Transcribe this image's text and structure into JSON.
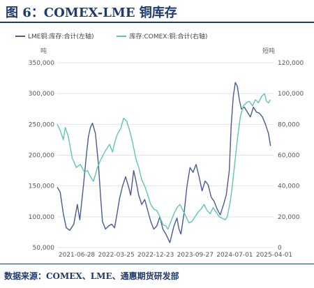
{
  "title": "图 6：COMEX-LME 铜库存",
  "source": "数据来源：COMEX、LME、通惠期货研发部",
  "colors": {
    "lme": "#4a5a96",
    "comex": "#5ec8b0",
    "title": "#1f3a6e",
    "grid": "#e3e3e3"
  },
  "chart_data": {
    "type": "line",
    "left_unit": "吨",
    "right_unit": "短吨",
    "y_left_ticks": [
      "350,000",
      "300,000",
      "250,000",
      "200,000",
      "150,000",
      "100,000",
      "50,000"
    ],
    "y_right_ticks": [
      "120,000",
      "100,000",
      "80,000",
      "60,000",
      "40,000",
      "20,000",
      "0"
    ],
    "ylim_left": [
      50000,
      350000
    ],
    "ylim_right": [
      0,
      120000
    ],
    "x_ticks": [
      "2021-06-28",
      "2022-03-25",
      "2022-12-23",
      "2023-09-27",
      "2024-07-01",
      "2025-04-01"
    ],
    "grid": "horizontal",
    "legend_position": "top",
    "series": [
      {
        "name": "LME铜:库存:合计(左轴)",
        "axis": "left",
        "values": [
          [
            2021.0,
            148000
          ],
          [
            2021.06,
            140000
          ],
          [
            2021.12,
            105000
          ],
          [
            2021.18,
            82000
          ],
          [
            2021.25,
            78000
          ],
          [
            2021.33,
            88000
          ],
          [
            2021.4,
            120000
          ],
          [
            2021.45,
            95000
          ],
          [
            2021.52,
            150000
          ],
          [
            2021.58,
            200000
          ],
          [
            2021.62,
            230000
          ],
          [
            2021.66,
            245000
          ],
          [
            2021.7,
            252000
          ],
          [
            2021.76,
            235000
          ],
          [
            2021.82,
            185000
          ],
          [
            2021.86,
            135000
          ],
          [
            2021.9,
            92000
          ],
          [
            2021.96,
            80000
          ],
          [
            2022.02,
            85000
          ],
          [
            2022.08,
            88000
          ],
          [
            2022.14,
            82000
          ],
          [
            2022.2,
            110000
          ],
          [
            2022.24,
            130000
          ],
          [
            2022.3,
            150000
          ],
          [
            2022.36,
            165000
          ],
          [
            2022.42,
            148000
          ],
          [
            2022.46,
            135000
          ],
          [
            2022.52,
            175000
          ],
          [
            2022.56,
            160000
          ],
          [
            2022.62,
            135000
          ],
          [
            2022.68,
            120000
          ],
          [
            2022.74,
            128000
          ],
          [
            2022.8,
            110000
          ],
          [
            2022.86,
            92000
          ],
          [
            2022.92,
            80000
          ],
          [
            2022.98,
            85000
          ],
          [
            2023.04,
            100000
          ],
          [
            2023.1,
            80000
          ],
          [
            2023.16,
            72000
          ],
          [
            2023.2,
            65000
          ],
          [
            2023.24,
            58000
          ],
          [
            2023.28,
            72000
          ],
          [
            2023.32,
            85000
          ],
          [
            2023.38,
            98000
          ],
          [
            2023.42,
            80000
          ],
          [
            2023.46,
            72000
          ],
          [
            2023.52,
            105000
          ],
          [
            2023.58,
            150000
          ],
          [
            2023.64,
            180000
          ],
          [
            2023.7,
            172000
          ],
          [
            2023.76,
            185000
          ],
          [
            2023.82,
            165000
          ],
          [
            2023.88,
            142000
          ],
          [
            2023.94,
            158000
          ],
          [
            2024.0,
            152000
          ],
          [
            2024.06,
            132000
          ],
          [
            2024.12,
            125000
          ],
          [
            2024.18,
            112000
          ],
          [
            2024.24,
            103000
          ],
          [
            2024.3,
            118000
          ],
          [
            2024.36,
            135000
          ],
          [
            2024.42,
            175000
          ],
          [
            2024.46,
            250000
          ],
          [
            2024.5,
            295000
          ],
          [
            2024.54,
            318000
          ],
          [
            2024.58,
            312000
          ],
          [
            2024.62,
            290000
          ],
          [
            2024.66,
            275000
          ],
          [
            2024.72,
            278000
          ],
          [
            2024.78,
            270000
          ],
          [
            2024.84,
            262000
          ],
          [
            2024.9,
            278000
          ],
          [
            2024.96,
            270000
          ],
          [
            2025.02,
            268000
          ],
          [
            2025.08,
            262000
          ],
          [
            2025.14,
            250000
          ],
          [
            2025.2,
            235000
          ],
          [
            2025.24,
            215000
          ]
        ]
      },
      {
        "name": "库存:COMEX:铜:合计(右轴)",
        "axis": "right",
        "values": [
          [
            2021.0,
            80000
          ],
          [
            2021.06,
            76000
          ],
          [
            2021.12,
            70000
          ],
          [
            2021.16,
            78000
          ],
          [
            2021.22,
            72000
          ],
          [
            2021.3,
            58000
          ],
          [
            2021.38,
            52000
          ],
          [
            2021.46,
            54000
          ],
          [
            2021.54,
            49000
          ],
          [
            2021.6,
            50000
          ],
          [
            2021.66,
            46000
          ],
          [
            2021.72,
            43000
          ],
          [
            2021.8,
            52000
          ],
          [
            2021.88,
            58000
          ],
          [
            2021.96,
            63000
          ],
          [
            2022.04,
            67000
          ],
          [
            2022.1,
            62000
          ],
          [
            2022.14,
            68000
          ],
          [
            2022.2,
            74000
          ],
          [
            2022.26,
            77000
          ],
          [
            2022.32,
            84000
          ],
          [
            2022.38,
            82000
          ],
          [
            2022.44,
            76000
          ],
          [
            2022.5,
            68000
          ],
          [
            2022.56,
            58000
          ],
          [
            2022.62,
            52000
          ],
          [
            2022.68,
            44000
          ],
          [
            2022.74,
            40000
          ],
          [
            2022.8,
            34000
          ],
          [
            2022.86,
            28000
          ],
          [
            2022.92,
            25000
          ],
          [
            2022.98,
            24000
          ],
          [
            2023.04,
            20000
          ],
          [
            2023.1,
            15000
          ],
          [
            2023.16,
            14000
          ],
          [
            2023.2,
            12000
          ],
          [
            2023.26,
            17000
          ],
          [
            2023.32,
            22000
          ],
          [
            2023.38,
            26000
          ],
          [
            2023.44,
            28000
          ],
          [
            2023.5,
            24000
          ],
          [
            2023.56,
            20000
          ],
          [
            2023.62,
            16000
          ],
          [
            2023.68,
            17000
          ],
          [
            2023.74,
            20000
          ],
          [
            2023.8,
            23000
          ],
          [
            2023.86,
            25000
          ],
          [
            2023.92,
            28000
          ],
          [
            2023.98,
            24000
          ],
          [
            2024.04,
            22000
          ],
          [
            2024.1,
            26000
          ],
          [
            2024.16,
            23000
          ],
          [
            2024.22,
            20000
          ],
          [
            2024.28,
            19000
          ],
          [
            2024.34,
            18000
          ],
          [
            2024.38,
            20000
          ],
          [
            2024.44,
            30000
          ],
          [
            2024.48,
            40000
          ],
          [
            2024.52,
            52000
          ],
          [
            2024.58,
            70000
          ],
          [
            2024.64,
            85000
          ],
          [
            2024.7,
            92000
          ],
          [
            2024.76,
            94000
          ],
          [
            2024.82,
            95000
          ],
          [
            2024.88,
            92000
          ],
          [
            2024.94,
            96000
          ],
          [
            2025.0,
            94000
          ],
          [
            2025.06,
            98000
          ],
          [
            2025.12,
            100000
          ],
          [
            2025.16,
            95000
          ],
          [
            2025.2,
            94000
          ],
          [
            2025.24,
            96000
          ]
        ]
      }
    ]
  }
}
